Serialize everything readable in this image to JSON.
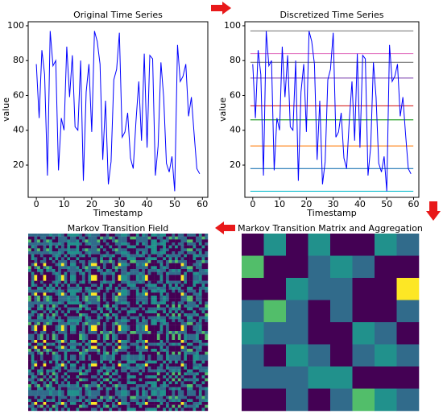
{
  "chart_data": [
    {
      "type": "line",
      "title": "Original Time Series",
      "x_label": "Timestamp",
      "y_label": "value",
      "color": "#0000ff",
      "values": [
        78,
        47,
        86,
        72,
        14,
        97,
        77,
        80,
        17,
        47,
        40,
        88,
        59,
        83,
        42,
        40,
        80,
        11,
        62,
        78,
        39,
        97,
        91,
        78,
        23,
        57,
        9,
        22,
        69,
        75,
        96,
        36,
        39,
        50,
        24,
        18,
        45,
        68,
        34,
        84,
        30,
        83,
        81,
        14,
        31,
        79,
        59,
        21,
        16,
        25,
        5,
        89,
        68,
        71,
        78,
        48,
        59,
        38,
        18,
        15
      ],
      "xlim": [
        -2.95,
        61.95
      ],
      "ylim": [
        1.5,
        102.3
      ],
      "xticks": [
        0,
        10,
        20,
        30,
        40,
        50,
        60
      ],
      "yticks": [
        20,
        40,
        60,
        80,
        100
      ]
    },
    {
      "type": "line",
      "title": "Discretized Time Series",
      "x_label": "Timestamp",
      "y_label": "value",
      "color": "#0000ff",
      "bin_edges": [
        5,
        18,
        31,
        46,
        54,
        70,
        79,
        84,
        97
      ],
      "bin_colors": [
        "#17becf",
        "#1f77b4",
        "#ff7f0e",
        "#2ca02c",
        "#d62728",
        "#9467bd",
        "#7f7f7f",
        "#e377c2",
        "#7f7f7f"
      ],
      "xlim": [
        -2.95,
        61.95
      ],
      "ylim": [
        1.5,
        102.3
      ],
      "xticks": [
        0,
        10,
        20,
        30,
        40,
        50,
        60
      ],
      "yticks": [
        20,
        40,
        60,
        80,
        100
      ]
    },
    {
      "type": "mtf",
      "title": "Markov Transition Field"
    },
    {
      "type": "heatmap",
      "title": "Markov Transition Matrix and Aggregation",
      "matrix": [
        [
          0,
          0.5,
          0,
          0.5,
          0,
          0,
          0.5,
          0.35
        ],
        [
          0.7,
          0,
          0,
          0.35,
          0.5,
          0.35,
          0,
          0
        ],
        [
          0,
          0,
          0.5,
          0.35,
          0.35,
          0,
          0,
          1
        ],
        [
          0.35,
          0.7,
          0.35,
          0,
          0.35,
          0,
          0,
          0.35
        ],
        [
          0.5,
          0.35,
          0.35,
          0,
          0,
          0.5,
          0.35,
          0
        ],
        [
          0.35,
          0,
          0.5,
          0.35,
          0,
          0.35,
          0.5,
          0.35
        ],
        [
          0.35,
          0.35,
          0.35,
          0.5,
          0.5,
          0,
          0,
          0
        ],
        [
          0,
          0,
          0.35,
          0,
          0.35,
          0.7,
          0.5,
          0.35
        ]
      ],
      "vlim": [
        0,
        1
      ]
    }
  ]
}
